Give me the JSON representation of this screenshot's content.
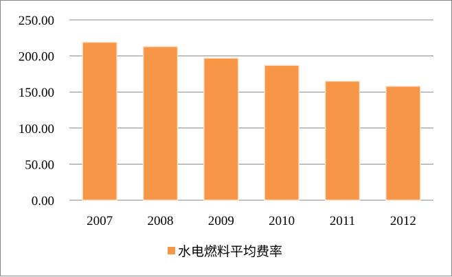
{
  "chart_data": {
    "type": "bar",
    "categories": [
      "2007",
      "2008",
      "2009",
      "2010",
      "2011",
      "2012"
    ],
    "series": [
      {
        "name": "水电燃料平均费率",
        "values": [
          219,
          213,
          197,
          187,
          165,
          158
        ],
        "color": "#F79646"
      }
    ],
    "ylim": [
      0,
      250
    ],
    "yticks": [
      "0.00",
      "50.00",
      "100.00",
      "150.00",
      "200.00",
      "250.00"
    ],
    "grid": true,
    "legend": "bottom"
  }
}
